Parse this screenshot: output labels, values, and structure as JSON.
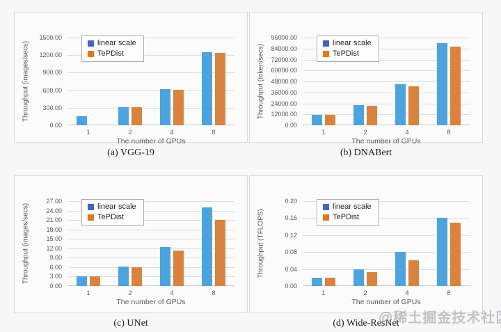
{
  "page": {
    "background": "#f7f7f7",
    "watermark": "@稀土掘金技术社区"
  },
  "style": {
    "bar_colors": [
      "#4da3dd",
      "#d9833e"
    ],
    "legend_swatch_colors": [
      "#4464c4",
      "#e2771f"
    ],
    "grid_color": "#dcdcdc",
    "axis_text_color": "#595959",
    "panel_bg": "#fbfbfb",
    "panel_border": "#d9d9d9"
  },
  "chart_data": [
    {
      "type": "bar",
      "caption": "(a) VGG-19",
      "categories": [
        "1",
        "2",
        "4",
        "8"
      ],
      "series": [
        {
          "name": "linear scale",
          "values": [
            155,
            310,
            620,
            1245
          ]
        },
        {
          "name": "TePDist",
          "values": [
            null,
            305,
            612,
            1235
          ]
        }
      ],
      "xlabel": "The number of GPUs",
      "ylabel": "Throughput (images/secs)",
      "ylim": [
        0,
        1500
      ],
      "ytick_step": 300,
      "ytick_labels": [
        "0.00",
        "300.00",
        "600.00",
        "900.00",
        "1200.00",
        "1500.00"
      ],
      "legend": [
        "linear scale",
        "TePDist"
      ],
      "legend_position": "top-left",
      "grid": true
    },
    {
      "type": "bar",
      "caption": "(b) DNABert",
      "categories": [
        "1",
        "2",
        "4",
        "8"
      ],
      "series": [
        {
          "name": "linear scale",
          "values": [
            11300,
            22000,
            45000,
            90000
          ]
        },
        {
          "name": "TePDist",
          "values": [
            11300,
            21000,
            43000,
            86000
          ]
        }
      ],
      "xlabel": "The number of GPUs",
      "ylabel": "Throughput (token/secs)",
      "ylim": [
        0,
        96000
      ],
      "ytick_step": 12000,
      "ytick_labels": [
        "0.00",
        "12000.00",
        "24000.00",
        "36000.00",
        "48000.00",
        "60000.00",
        "72000.00",
        "84000.00",
        "96000.00"
      ],
      "legend": [
        "linear scale",
        "TePDist"
      ],
      "legend_position": "top-left",
      "grid": true
    },
    {
      "type": "bar",
      "caption": "(c) UNet",
      "categories": [
        "1",
        "2",
        "4",
        "8"
      ],
      "series": [
        {
          "name": "linear scale",
          "values": [
            3.1,
            6.2,
            12.5,
            25.1
          ]
        },
        {
          "name": "TePDist",
          "values": [
            3.0,
            6.0,
            11.3,
            21.0
          ]
        }
      ],
      "xlabel": "The number of GPUs",
      "ylabel": "Throughput (images/secs)",
      "ylim": [
        0,
        27
      ],
      "ytick_step": 3,
      "ytick_labels": [
        "0.00",
        "3.00",
        "6.00",
        "9.00",
        "12.00",
        "15.00",
        "18.00",
        "21.00",
        "24.00",
        "27.00"
      ],
      "legend": [
        "linear scale",
        "TePDist"
      ],
      "legend_position": "top-left",
      "grid": true
    },
    {
      "type": "bar",
      "caption": "(d) Wide-ResNet",
      "categories": [
        "1",
        "2",
        "4",
        "8"
      ],
      "series": [
        {
          "name": "linear scale",
          "values": [
            0.02,
            0.04,
            0.081,
            0.161
          ]
        },
        {
          "name": "TePDist",
          "values": [
            0.02,
            0.033,
            0.061,
            0.15
          ]
        }
      ],
      "xlabel": "The number of GPUs",
      "ylabel": "Throughput (TFLOPS)",
      "ylim": [
        0,
        0.2
      ],
      "ytick_step": 0.04,
      "ytick_labels": [
        "0.00",
        "0.04",
        "0.08",
        "0.12",
        "0.16",
        "0.20"
      ],
      "legend": [
        "linear scale",
        "TePDist"
      ],
      "legend_position": "top-left",
      "grid": true
    }
  ]
}
